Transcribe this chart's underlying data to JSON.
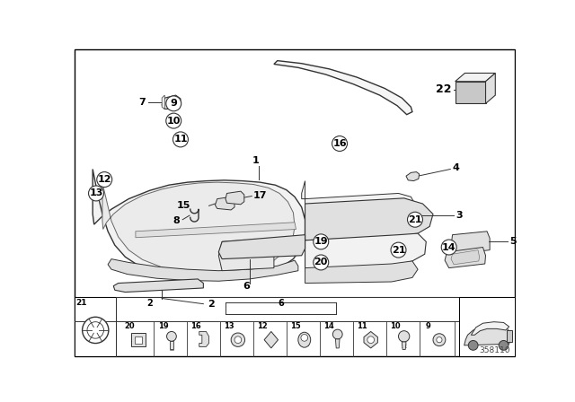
{
  "bg_color": "#ffffff",
  "part_number": "358110",
  "fig_width": 6.4,
  "fig_height": 4.48,
  "dpi": 100,
  "line_color": "#333333",
  "fill_light": "#f2f2f2",
  "fill_mid": "#e0e0e0",
  "fill_dark": "#c8c8c8",
  "fill_darkest": "#b0b0b0"
}
